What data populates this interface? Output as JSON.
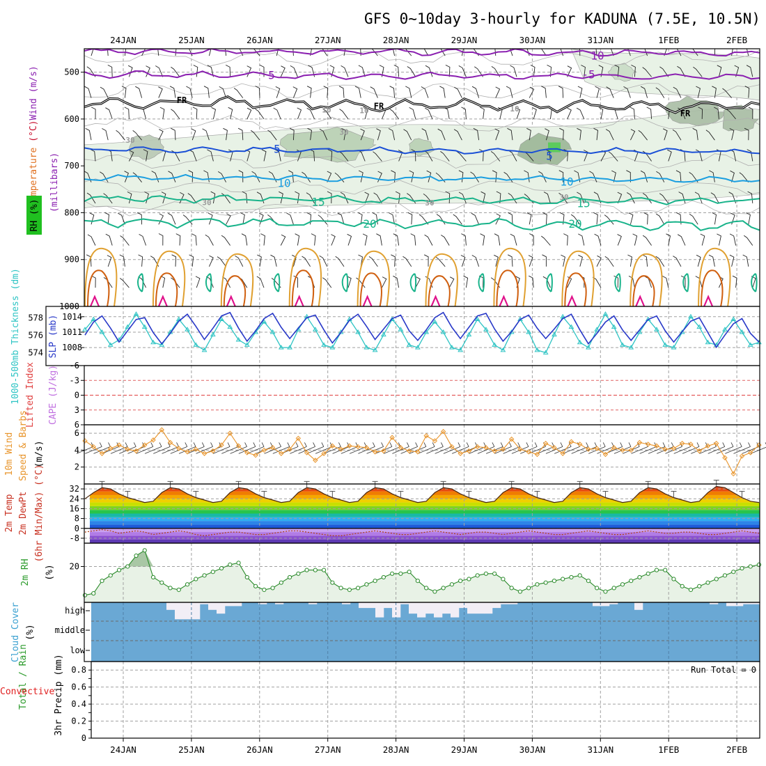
{
  "title": "GFS 0~10day 3-hourly for KADUNA (7.5E, 10.5N)",
  "dates": [
    "24JAN",
    "25JAN",
    "26JAN",
    "27JAN",
    "28JAN",
    "29JAN",
    "30JAN",
    "31JAN",
    "1FEB",
    "2FEB"
  ],
  "colors": {
    "purple": "#8a1fb0",
    "blue": "#1a4fd6",
    "lightblue": "#1a9ee0",
    "teal": "#18b38a",
    "orange": "#e0a030",
    "darkorange": "#d06010",
    "magenta": "#e0108a",
    "rh_fill": "#e8f2e6",
    "cyan": "#2ec4c4",
    "navy": "#2838c8",
    "wind10": "#e8942a",
    "cloud": "#6aa8d4",
    "green": "#2a8a2a"
  },
  "chart_data": [
    {
      "type": "contour",
      "panel": "upper-air",
      "ylabel_parts": [
        "Temperature",
        " (°C)",
        "Wind",
        " (m/s)"
      ],
      "ylabel2": "(millibars)",
      "rh_label": "RH (%)",
      "yticks": [
        "500",
        "600",
        "700",
        "800",
        "900",
        "1000"
      ],
      "ylim": [
        450,
        1000
      ],
      "contour_labels": [
        {
          "text": "10",
          "series": "temperature -10"
        },
        {
          "text": "-5",
          "series": "temperature -5"
        },
        {
          "text": "5",
          "series": "temperature -5"
        },
        {
          "text": "FR",
          "series": "freezing level"
        },
        {
          "text": "FR",
          "series": "freezing level"
        },
        {
          "text": "FR",
          "series": "freezing level"
        },
        {
          "text": "5",
          "series": "temperature 5"
        },
        {
          "text": "5",
          "series": "temperature 5"
        },
        {
          "text": "10",
          "series": "temperature 10"
        },
        {
          "text": "10",
          "series": "temperature 10"
        },
        {
          "text": "15",
          "series": "temperature 15"
        },
        {
          "text": "15",
          "series": "temperature 15"
        },
        {
          "text": "20",
          "series": "temperature 20"
        },
        {
          "text": "20",
          "series": "temperature 20"
        },
        {
          "text": "30",
          "series": "RH"
        },
        {
          "text": "30",
          "series": "RH"
        },
        {
          "text": "30",
          "series": "RH"
        },
        {
          "text": "30",
          "series": "RH"
        },
        {
          "text": "30",
          "series": "RH"
        },
        {
          "text": "10",
          "series": "RH"
        },
        {
          "text": "10",
          "series": "RH"
        },
        {
          "text": "10",
          "series": "RH"
        }
      ],
      "isotherm_levels_mb": {
        "-10": 455,
        "-5": 505,
        "FR": 565,
        "5": 665,
        "10": 725,
        "15": 770,
        "20": 820
      }
    },
    {
      "type": "line",
      "panel": "thickness-slp",
      "ylabel_left": "1000-500mb Thickness (dm)",
      "ylabel_right": "SLP (mb)",
      "yticks_left": [
        "578",
        "576",
        "574"
      ],
      "yticks_right": [
        "1014",
        "1011",
        "1008"
      ],
      "series": [
        {
          "name": "1000-500mb Thickness",
          "values": [
            576.0,
            577.5,
            578.2,
            576.8,
            575.2,
            576.5,
            577.8,
            578.0,
            576.3,
            575.0,
            576.2,
            577.6,
            578.4,
            577.0,
            575.5,
            576.8,
            578.2,
            578.6,
            576.8,
            575.3,
            576.5,
            577.9,
            578.5,
            576.9,
            575.6,
            576.8,
            578.0,
            578.3,
            576.6,
            575.1,
            576.3,
            577.7,
            578.4,
            577.0,
            575.5,
            576.7,
            577.9,
            578.3,
            576.5,
            575.4,
            576.6,
            578.0,
            578.6,
            576.9,
            575.6,
            576.9,
            578.2,
            578.5,
            576.7,
            575.3,
            576.4,
            577.8,
            578.3,
            576.8,
            575.6,
            576.7,
            577.9,
            578.4,
            576.6,
            575.0,
            576.2,
            577.5,
            578.2,
            576.6,
            575.4,
            576.6,
            577.8,
            578.2,
            576.5,
            575.2,
            576.4,
            577.6,
            578.0,
            576.3,
            574.6,
            576.0,
            577.3,
            577.9,
            576.2,
            575.2
          ]
        },
        {
          "name": "SLP",
          "values": [
            1011.5,
            1013.5,
            1011.0,
            1008.5,
            1009.5,
            1012.0,
            1014.5,
            1012.0,
            1009.0,
            1008.5,
            1011.0,
            1013.5,
            1011.5,
            1008.5,
            1007.5,
            1010.5,
            1013.5,
            1012.0,
            1009.5,
            1008.5,
            1011.0,
            1013.0,
            1011.0,
            1008.0,
            1008.0,
            1011.5,
            1014.0,
            1011.5,
            1008.5,
            1008.0,
            1011.0,
            1013.5,
            1011.0,
            1008.0,
            1007.5,
            1010.5,
            1013.5,
            1011.5,
            1008.5,
            1008.0,
            1011.0,
            1013.0,
            1011.0,
            1008.0,
            1007.5,
            1010.5,
            1013.5,
            1011.5,
            1008.5,
            1007.5,
            1011.0,
            1013.5,
            1011.0,
            1007.5,
            1007.0,
            1010.5,
            1014.0,
            1012.0,
            1009.0,
            1008.0,
            1011.5,
            1014.5,
            1012.0,
            1008.5,
            1008.0,
            1011.0,
            1013.5,
            1011.5,
            1008.5,
            1008.0,
            1011.0,
            1014.0,
            1012.0,
            1009.0,
            1008.5,
            1011.5,
            1013.5,
            1011.0,
            1008.5,
            1009.0
          ]
        }
      ]
    },
    {
      "type": "line",
      "panel": "stability",
      "ylabel_left": "Lifted Index",
      "ylabel_right": "CAPE (J/kg)",
      "yticks": [
        "-6",
        "-3",
        "0",
        "3",
        "6"
      ],
      "ylim": [
        6,
        -6
      ],
      "series": []
    },
    {
      "type": "line",
      "panel": "wind10m",
      "ylabel": "10m Wind Speed & Barbs",
      "units": "(m/s)",
      "yticks": [
        "2",
        "4",
        "6"
      ],
      "ylim": [
        0,
        7
      ],
      "series": [
        {
          "name": "10m Wind Speed",
          "values": [
            5.1,
            4.4,
            3.6,
            4.2,
            4.6,
            4.1,
            3.9,
            4.6,
            5.2,
            6.4,
            4.9,
            4.2,
            3.8,
            4.1,
            3.6,
            3.9,
            4.6,
            6.0,
            4.5,
            3.7,
            3.4,
            4.0,
            4.3,
            3.6,
            4.1,
            5.4,
            3.7,
            2.8,
            3.6,
            4.5,
            4.1,
            4.5,
            4.4,
            4.3,
            3.8,
            3.9,
            5.5,
            4.3,
            3.9,
            3.8,
            5.7,
            5.1,
            6.2,
            4.4,
            3.6,
            3.9,
            4.4,
            4.3,
            3.9,
            4.1,
            5.3,
            4.1,
            3.8,
            3.5,
            4.8,
            4.3,
            3.6,
            5.0,
            4.7,
            4.1,
            4.2,
            3.5,
            4.3,
            4.0,
            4.0,
            4.9,
            4.7,
            4.5,
            4.1,
            4.2,
            4.8,
            4.7,
            3.9,
            4.5,
            4.8,
            3.1,
            1.2,
            3.3,
            3.7,
            4.6
          ]
        }
      ]
    },
    {
      "type": "area",
      "panel": "temperature",
      "ylabel": "2m Temp 2m DewPt (6hr Min/Max) (°C)",
      "yticks": [
        "32",
        "24",
        "16",
        "8",
        "0",
        "-8"
      ],
      "ylim": [
        -12,
        36
      ],
      "series": [
        {
          "name": "2m Temp",
          "values": [
            24,
            29,
            33,
            32,
            28,
            25,
            23,
            21,
            22,
            29,
            33,
            32,
            28,
            25,
            23,
            21,
            22,
            29,
            33,
            32,
            28,
            25,
            23,
            21,
            22,
            29,
            33,
            32,
            28,
            25,
            23,
            21,
            22,
            29,
            33,
            32,
            28,
            25,
            23,
            21,
            22,
            29,
            33,
            32,
            28,
            25,
            23,
            21,
            22,
            29,
            33,
            32,
            28,
            25,
            23,
            21,
            22,
            29,
            33,
            32,
            28,
            25,
            23,
            21,
            22,
            29,
            33,
            32,
            28,
            25,
            23,
            21,
            22,
            29,
            34,
            33,
            29,
            25,
            22,
            21
          ]
        },
        {
          "name": "2m DewPt",
          "values": [
            -3,
            -2,
            -1,
            -2,
            -4,
            -3,
            -2,
            -3,
            -5,
            -4,
            -3,
            -2,
            -3,
            -5,
            -6,
            -5,
            -4,
            -3,
            -3,
            -4,
            -5,
            -5,
            -4,
            -3,
            -2,
            -2,
            -3,
            -4,
            -5,
            -6,
            -6,
            -5,
            -4,
            -3,
            -2,
            -3,
            -4,
            -5,
            -5,
            -4,
            -3,
            -2,
            -3,
            -4,
            -5,
            -4,
            -3,
            -3,
            -4,
            -5,
            -4,
            -3,
            -2,
            -3,
            -4,
            -5,
            -5,
            -4,
            -3,
            -2,
            -3,
            -4,
            -5,
            -5,
            -4,
            -3,
            -2,
            -3,
            -4,
            -4,
            -3,
            -3,
            -4,
            -5,
            -5,
            -4,
            -3,
            -2,
            -3,
            -4
          ]
        }
      ],
      "color_bands": [
        "#5e3ab3",
        "#8a4fd0",
        "#b17ce6",
        "#c8a0f0",
        "#1f5ad8",
        "#2d84e8",
        "#2eaef0",
        "#18b8a8",
        "#29c44a",
        "#7ed321",
        "#c8e000",
        "#f0d000",
        "#f5a800",
        "#f07c00",
        "#e84a10",
        "#c82010"
      ]
    },
    {
      "type": "line",
      "panel": "rh",
      "ylabel": "2m RH",
      "units": "(%)",
      "yticks": [
        "20"
      ],
      "ylim": [
        0,
        33
      ],
      "series": [
        {
          "name": "2m RH",
          "values": [
            4,
            5,
            12,
            15,
            18,
            20,
            26,
            29,
            14,
            11,
            8,
            7,
            10,
            13,
            15,
            17,
            19,
            21,
            22,
            14,
            9,
            7,
            8,
            11,
            14,
            16,
            18,
            18,
            18,
            11,
            8,
            7,
            8,
            10,
            12,
            14,
            16,
            16,
            17,
            12,
            8,
            6,
            8,
            10,
            12,
            13,
            15,
            16,
            16,
            13,
            8,
            6,
            8,
            10,
            11,
            12,
            13,
            14,
            15,
            12,
            8,
            6,
            8,
            10,
            12,
            14,
            16,
            18,
            18,
            13,
            9,
            7,
            9,
            11,
            13,
            15,
            17,
            19,
            20,
            21
          ]
        }
      ]
    },
    {
      "type": "bar",
      "panel": "cloud",
      "ylabel": "Cloud Cover (%)",
      "yticks": [
        "high",
        "middle",
        "low"
      ],
      "series": [
        {
          "name": "high cloud",
          "values": [
            0,
            0,
            0,
            0,
            0,
            0,
            0,
            0,
            0,
            40,
            90,
            90,
            90,
            10,
            40,
            60,
            20,
            20,
            0,
            0,
            10,
            0,
            10,
            0,
            0,
            0,
            10,
            0,
            0,
            0,
            10,
            0,
            30,
            30,
            80,
            30,
            80,
            10,
            60,
            80,
            60,
            80,
            60,
            80,
            30,
            60,
            60,
            60,
            30,
            10,
            10,
            0,
            0,
            0,
            0,
            0,
            0,
            0,
            0,
            0,
            20,
            20,
            10,
            0,
            0,
            40,
            0,
            0,
            0,
            0,
            0,
            0,
            0,
            0,
            10,
            0,
            20,
            20,
            10,
            10
          ]
        }
      ]
    },
    {
      "type": "bar",
      "panel": "precip",
      "ylabel_left": "Total / Rain",
      "ylabel_left2": "Convective",
      "ylabel": "3hr Precip (mm)",
      "yticks": [
        "0.8",
        "0.6",
        "0.4",
        "0.2",
        "0"
      ],
      "ylim": [
        0,
        0.9
      ],
      "run_total": "Run Total = 0",
      "series": []
    }
  ]
}
